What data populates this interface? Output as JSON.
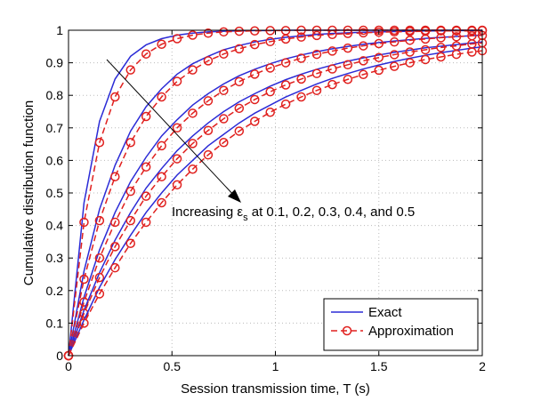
{
  "chart_data": {
    "type": "line",
    "xlabel": "Session transmission time, T (s)",
    "ylabel": "Cumulative distribution function",
    "xlim": [
      0,
      2
    ],
    "ylim": [
      0,
      1
    ],
    "xticks": [
      "0",
      "0.5",
      "1",
      "1.5",
      "2"
    ],
    "yticks": [
      "0",
      "0.1",
      "0.2",
      "0.3",
      "0.4",
      "0.5",
      "0.6",
      "0.7",
      "0.8",
      "0.9",
      "1"
    ],
    "grid": true,
    "legend_position": "bottom-right",
    "legend": [
      {
        "label": "Exact",
        "style": "solid",
        "color": "#2b2bd6"
      },
      {
        "label": "Approximation",
        "style": "dashed-circle",
        "color": "#e0201e"
      }
    ],
    "annotation": {
      "prefix": "Increasing ε",
      "subscript": "s",
      "suffix": " at 0.1, 0.2, 0.3, 0.4, and 0.5"
    },
    "x": [
      0,
      0.075,
      0.15,
      0.225,
      0.3,
      0.375,
      0.45,
      0.525,
      0.6,
      0.675,
      0.75,
      0.825,
      0.9,
      0.975,
      1.05,
      1.125,
      1.2,
      1.275,
      1.35,
      1.425,
      1.5,
      1.575,
      1.65,
      1.725,
      1.8,
      1.875,
      1.95,
      2.0
    ],
    "series": [
      {
        "epsilon": 0.1,
        "exact": [
          0,
          0.47,
          0.72,
          0.85,
          0.92,
          0.955,
          0.974,
          0.985,
          0.991,
          0.995,
          0.997,
          0.998,
          0.999,
          0.999,
          1,
          1,
          1,
          1,
          1,
          1,
          1,
          1,
          1,
          1,
          1,
          1,
          1,
          1
        ],
        "approx": [
          0,
          0.41,
          0.655,
          0.795,
          0.878,
          0.927,
          0.957,
          0.974,
          0.985,
          0.991,
          0.995,
          0.997,
          0.998,
          0.999,
          0.999,
          1,
          1,
          1,
          1,
          1,
          1,
          1,
          1,
          1,
          1,
          1,
          1,
          1
        ]
      },
      {
        "epsilon": 0.2,
        "exact": [
          0,
          0.26,
          0.45,
          0.585,
          0.69,
          0.765,
          0.82,
          0.865,
          0.897,
          0.92,
          0.94,
          0.953,
          0.964,
          0.972,
          0.978,
          0.983,
          0.987,
          0.99,
          0.992,
          0.994,
          0.995,
          0.996,
          0.997,
          0.998,
          0.998,
          0.999,
          0.999,
          0.999
        ],
        "approx": [
          0,
          0.235,
          0.415,
          0.55,
          0.655,
          0.735,
          0.795,
          0.843,
          0.878,
          0.906,
          0.927,
          0.943,
          0.956,
          0.965,
          0.973,
          0.979,
          0.984,
          0.987,
          0.99,
          0.992,
          0.994,
          0.995,
          0.996,
          0.997,
          0.998,
          0.998,
          0.998,
          0.999
        ]
      },
      {
        "epsilon": 0.3,
        "exact": [
          0,
          0.18,
          0.325,
          0.44,
          0.535,
          0.61,
          0.675,
          0.725,
          0.77,
          0.805,
          0.835,
          0.86,
          0.88,
          0.897,
          0.912,
          0.924,
          0.934,
          0.943,
          0.95,
          0.957,
          0.962,
          0.967,
          0.971,
          0.975,
          0.978,
          0.981,
          0.983,
          0.985
        ],
        "approx": [
          0,
          0.165,
          0.3,
          0.41,
          0.505,
          0.58,
          0.645,
          0.7,
          0.745,
          0.783,
          0.815,
          0.842,
          0.865,
          0.884,
          0.9,
          0.914,
          0.926,
          0.936,
          0.945,
          0.952,
          0.959,
          0.964,
          0.969,
          0.973,
          0.977,
          0.98,
          0.983,
          0.984
        ]
      },
      {
        "epsilon": 0.4,
        "exact": [
          0,
          0.14,
          0.255,
          0.355,
          0.44,
          0.515,
          0.575,
          0.63,
          0.675,
          0.715,
          0.75,
          0.78,
          0.805,
          0.828,
          0.848,
          0.865,
          0.88,
          0.893,
          0.905,
          0.915,
          0.924,
          0.932,
          0.939,
          0.946,
          0.951,
          0.956,
          0.961,
          0.964
        ],
        "approx": [
          0,
          0.13,
          0.24,
          0.335,
          0.415,
          0.49,
          0.55,
          0.605,
          0.652,
          0.692,
          0.728,
          0.76,
          0.787,
          0.811,
          0.832,
          0.85,
          0.867,
          0.881,
          0.894,
          0.906,
          0.916,
          0.925,
          0.933,
          0.94,
          0.947,
          0.952,
          0.958,
          0.961
        ]
      },
      {
        "epsilon": 0.5,
        "exact": [
          0,
          0.11,
          0.21,
          0.295,
          0.37,
          0.44,
          0.5,
          0.555,
          0.6,
          0.645,
          0.68,
          0.715,
          0.745,
          0.77,
          0.795,
          0.815,
          0.835,
          0.852,
          0.867,
          0.881,
          0.893,
          0.904,
          0.914,
          0.923,
          0.931,
          0.938,
          0.945,
          0.949
        ],
        "approx": [
          0,
          0.1,
          0.19,
          0.27,
          0.345,
          0.41,
          0.47,
          0.525,
          0.573,
          0.617,
          0.655,
          0.69,
          0.72,
          0.748,
          0.773,
          0.795,
          0.815,
          0.833,
          0.849,
          0.864,
          0.877,
          0.889,
          0.9,
          0.91,
          0.918,
          0.926,
          0.933,
          0.937
        ]
      }
    ]
  }
}
